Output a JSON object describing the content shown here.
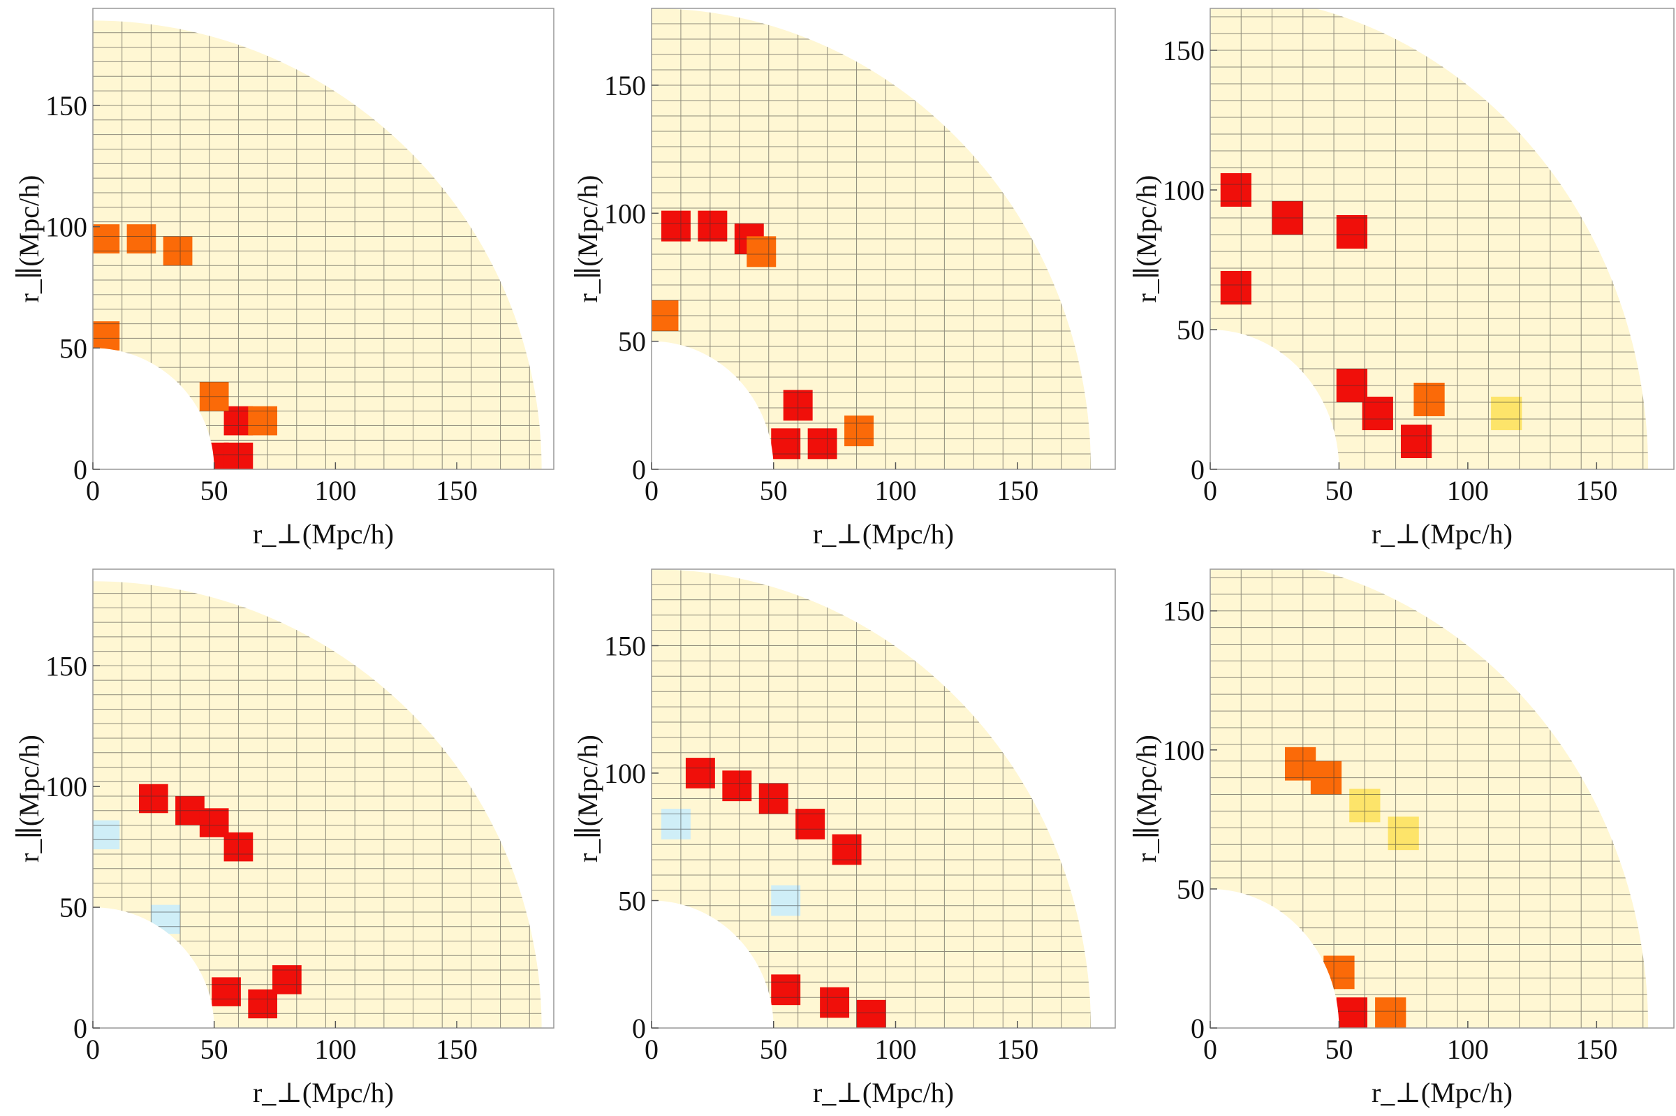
{
  "chart_data": [
    {
      "type": "heatmap",
      "xlabel": "r_⊥(Mpc/h)",
      "ylabel": "r_∥(Mpc/h)",
      "xlim": [
        0,
        190
      ],
      "ylim": [
        0,
        190
      ],
      "x_ticks": [
        "0",
        "50",
        "100",
        "150"
      ],
      "y_ticks": [
        "0",
        "50",
        "100",
        "150"
      ],
      "inner_radius": 50,
      "outer_radius": 185,
      "grid": true,
      "hot_cells": [
        {
          "rperp": 50,
          "rpar": 5,
          "level": "high"
        },
        {
          "rperp": 60,
          "rpar": 5,
          "level": "high"
        },
        {
          "rperp": 60,
          "rpar": 20,
          "level": "high"
        },
        {
          "rperp": 50,
          "rpar": 30,
          "level": "medium"
        },
        {
          "rperp": 70,
          "rpar": 20,
          "level": "medium"
        },
        {
          "rperp": 5,
          "rpar": 95,
          "level": "medium"
        },
        {
          "rperp": 20,
          "rpar": 95,
          "level": "medium"
        },
        {
          "rperp": 35,
          "rpar": 90,
          "level": "medium"
        },
        {
          "rperp": 5,
          "rpar": 55,
          "level": "medium"
        }
      ]
    },
    {
      "type": "heatmap",
      "xlabel": "r_⊥(Mpc/h)",
      "ylabel": "r_∥(Mpc/h)",
      "xlim": [
        0,
        190
      ],
      "ylim": [
        0,
        180
      ],
      "x_ticks": [
        "0",
        "50",
        "100",
        "150"
      ],
      "y_ticks": [
        "0",
        "50",
        "100",
        "150"
      ],
      "inner_radius": 50,
      "outer_radius": 180,
      "grid": true,
      "hot_cells": [
        {
          "rperp": 55,
          "rpar": 10,
          "level": "high"
        },
        {
          "rperp": 70,
          "rpar": 10,
          "level": "high"
        },
        {
          "rperp": 60,
          "rpar": 25,
          "level": "high"
        },
        {
          "rperp": 85,
          "rpar": 15,
          "level": "medium"
        },
        {
          "rperp": 10,
          "rpar": 95,
          "level": "high"
        },
        {
          "rperp": 25,
          "rpar": 95,
          "level": "high"
        },
        {
          "rperp": 40,
          "rpar": 90,
          "level": "high"
        },
        {
          "rperp": 5,
          "rpar": 60,
          "level": "medium"
        },
        {
          "rperp": 45,
          "rpar": 85,
          "level": "medium"
        }
      ]
    },
    {
      "type": "heatmap",
      "xlabel": "r_⊥(Mpc/h)",
      "ylabel": "r_∥(Mpc/h)",
      "xlim": [
        0,
        180
      ],
      "ylim": [
        0,
        165
      ],
      "x_ticks": [
        "0",
        "50",
        "100",
        "150"
      ],
      "y_ticks": [
        "0",
        "50",
        "100",
        "150"
      ],
      "inner_radius": 50,
      "outer_radius": 170,
      "grid": true,
      "hot_cells": [
        {
          "rperp": 10,
          "rpar": 100,
          "level": "high"
        },
        {
          "rperp": 30,
          "rpar": 90,
          "level": "high"
        },
        {
          "rperp": 10,
          "rpar": 65,
          "level": "high"
        },
        {
          "rperp": 55,
          "rpar": 85,
          "level": "high"
        },
        {
          "rperp": 65,
          "rpar": 20,
          "level": "high"
        },
        {
          "rperp": 80,
          "rpar": 10,
          "level": "high"
        },
        {
          "rperp": 55,
          "rpar": 30,
          "level": "high"
        },
        {
          "rperp": 85,
          "rpar": 25,
          "level": "medium"
        },
        {
          "rperp": 115,
          "rpar": 20,
          "level": "low"
        }
      ]
    },
    {
      "type": "heatmap",
      "xlabel": "r_⊥(Mpc/h)",
      "ylabel": "r_∥(Mpc/h)",
      "xlim": [
        0,
        190
      ],
      "ylim": [
        0,
        190
      ],
      "x_ticks": [
        "0",
        "50",
        "100",
        "150"
      ],
      "y_ticks": [
        "0",
        "50",
        "100",
        "150"
      ],
      "inner_radius": 50,
      "outer_radius": 185,
      "grid": true,
      "hot_cells": [
        {
          "rperp": 25,
          "rpar": 95,
          "level": "high"
        },
        {
          "rperp": 40,
          "rpar": 90,
          "level": "high"
        },
        {
          "rperp": 50,
          "rpar": 85,
          "level": "high"
        },
        {
          "rperp": 60,
          "rpar": 75,
          "level": "high"
        },
        {
          "rperp": 55,
          "rpar": 15,
          "level": "high"
        },
        {
          "rperp": 70,
          "rpar": 10,
          "level": "high"
        },
        {
          "rperp": 80,
          "rpar": 20,
          "level": "high"
        },
        {
          "rperp": 5,
          "rpar": 80,
          "level": "negative"
        },
        {
          "rperp": 30,
          "rpar": 45,
          "level": "negative"
        }
      ]
    },
    {
      "type": "heatmap",
      "xlabel": "r_⊥(Mpc/h)",
      "ylabel": "r_∥(Mpc/h)",
      "xlim": [
        0,
        190
      ],
      "ylim": [
        0,
        180
      ],
      "x_ticks": [
        "0",
        "50",
        "100",
        "150"
      ],
      "y_ticks": [
        "0",
        "50",
        "100",
        "150"
      ],
      "inner_radius": 50,
      "outer_radius": 180,
      "grid": true,
      "hot_cells": [
        {
          "rperp": 20,
          "rpar": 100,
          "level": "high"
        },
        {
          "rperp": 35,
          "rpar": 95,
          "level": "high"
        },
        {
          "rperp": 50,
          "rpar": 90,
          "level": "high"
        },
        {
          "rperp": 65,
          "rpar": 80,
          "level": "high"
        },
        {
          "rperp": 80,
          "rpar": 70,
          "level": "high"
        },
        {
          "rperp": 55,
          "rpar": 15,
          "level": "high"
        },
        {
          "rperp": 75,
          "rpar": 10,
          "level": "high"
        },
        {
          "rperp": 90,
          "rpar": 5,
          "level": "high"
        },
        {
          "rperp": 10,
          "rpar": 80,
          "level": "negative"
        },
        {
          "rperp": 55,
          "rpar": 50,
          "level": "negative"
        }
      ]
    },
    {
      "type": "heatmap",
      "xlabel": "r_⊥(Mpc/h)",
      "ylabel": "r_∥(Mpc/h)",
      "xlim": [
        0,
        180
      ],
      "ylim": [
        0,
        165
      ],
      "x_ticks": [
        "0",
        "50",
        "100",
        "150"
      ],
      "y_ticks": [
        "0",
        "50",
        "100",
        "150"
      ],
      "inner_radius": 50,
      "outer_radius": 170,
      "grid": true,
      "hot_cells": [
        {
          "rperp": 55,
          "rpar": 5,
          "level": "high"
        },
        {
          "rperp": 50,
          "rpar": 20,
          "level": "medium"
        },
        {
          "rperp": 70,
          "rpar": 5,
          "level": "medium"
        },
        {
          "rperp": 35,
          "rpar": 95,
          "level": "medium"
        },
        {
          "rperp": 45,
          "rpar": 90,
          "level": "medium"
        },
        {
          "rperp": 60,
          "rpar": 80,
          "level": "low"
        },
        {
          "rperp": 75,
          "rpar": 70,
          "level": "low"
        }
      ]
    }
  ],
  "colors": {
    "high": "#f00f0a",
    "medium": "#fb6a08",
    "warm": "#fdb70e",
    "low": "#fde46a",
    "faint": "#fff5c8",
    "negative": "#cfeef7",
    "negative_strong": "#8fcfe8",
    "grid": "#333333",
    "frame": "#999999"
  }
}
